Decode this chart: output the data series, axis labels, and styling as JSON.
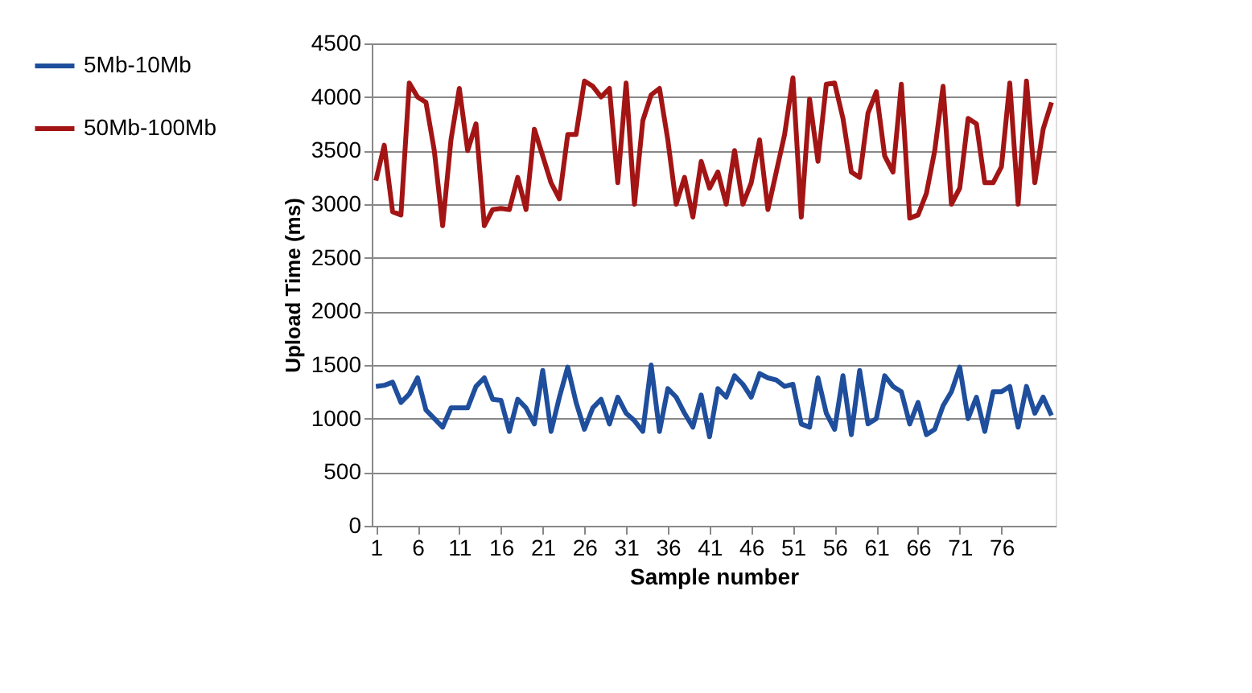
{
  "chart_data": {
    "type": "line",
    "xlabel": "Sample number",
    "ylabel": "Upload Time (ms)",
    "x": [
      1,
      2,
      3,
      4,
      5,
      6,
      7,
      8,
      9,
      10,
      11,
      12,
      13,
      14,
      15,
      16,
      17,
      18,
      19,
      20,
      21,
      22,
      23,
      24,
      25,
      26,
      27,
      28,
      29,
      30,
      31,
      32,
      33,
      34,
      35,
      36,
      37,
      38,
      39,
      40,
      41,
      42,
      43,
      44,
      45,
      46,
      47,
      48,
      49,
      50,
      51,
      52,
      53,
      54,
      55,
      56,
      57,
      58,
      59,
      60,
      61,
      62,
      63,
      64,
      65,
      66,
      67,
      68,
      69,
      70,
      71,
      72,
      73,
      74,
      75,
      76,
      77,
      78,
      79,
      80,
      81,
      82
    ],
    "xlim": [
      0.5,
      82.5
    ],
    "xticks": [
      1,
      6,
      11,
      16,
      21,
      26,
      31,
      36,
      41,
      46,
      51,
      56,
      61,
      66,
      71,
      76
    ],
    "ylim": [
      0,
      4500
    ],
    "yticks": [
      0,
      500,
      1000,
      1500,
      2000,
      2500,
      3000,
      3500,
      4000,
      4500
    ],
    "grid": "y",
    "legend": "left",
    "line_style": "solid",
    "series": [
      {
        "name": "5Mb-10Mb",
        "color": "#1f4e9c",
        "values": [
          1300,
          1310,
          1340,
          1150,
          1230,
          1380,
          1080,
          1000,
          920,
          1100,
          1100,
          1100,
          1300,
          1380,
          1180,
          1170,
          880,
          1180,
          1100,
          950,
          1450,
          880,
          1200,
          1480,
          1150,
          900,
          1100,
          1180,
          950,
          1200,
          1050,
          980,
          880,
          1500,
          880,
          1280,
          1200,
          1050,
          920,
          1220,
          830,
          1280,
          1200,
          1400,
          1320,
          1200,
          1420,
          1380,
          1360,
          1300,
          1320,
          950,
          920,
          1380,
          1050,
          900,
          1400,
          850,
          1450,
          950,
          1000,
          1400,
          1300,
          1250,
          950,
          1150,
          850,
          900,
          1120,
          1250,
          1480,
          1000,
          1200,
          880,
          1250,
          1250,
          1300,
          920,
          1300,
          1050,
          1200,
          1030
        ]
      },
      {
        "name": "50Mb-100Mb",
        "color": "#a31515",
        "values": [
          3220,
          3550,
          2930,
          2900,
          4130,
          4000,
          3950,
          3500,
          2800,
          3600,
          4080,
          3500,
          3750,
          2800,
          2950,
          2960,
          2950,
          3250,
          2950,
          3700,
          3450,
          3200,
          3050,
          3650,
          3650,
          4150,
          4100,
          4000,
          4080,
          3200,
          4130,
          3000,
          3780,
          4020,
          4080,
          3600,
          3000,
          3250,
          2880,
          3400,
          3150,
          3300,
          3000,
          3500,
          3000,
          3200,
          3600,
          2950,
          3300,
          3650,
          4180,
          2880,
          3980,
          3400,
          4120,
          4130,
          3800,
          3300,
          3250,
          3850,
          4050,
          3450,
          3300,
          4120,
          2870,
          2900,
          3100,
          3500,
          4100,
          3000,
          3150,
          3800,
          3750,
          3200,
          3200,
          3350,
          4130,
          3000,
          4150,
          3200,
          3700,
          3950
        ]
      }
    ]
  }
}
